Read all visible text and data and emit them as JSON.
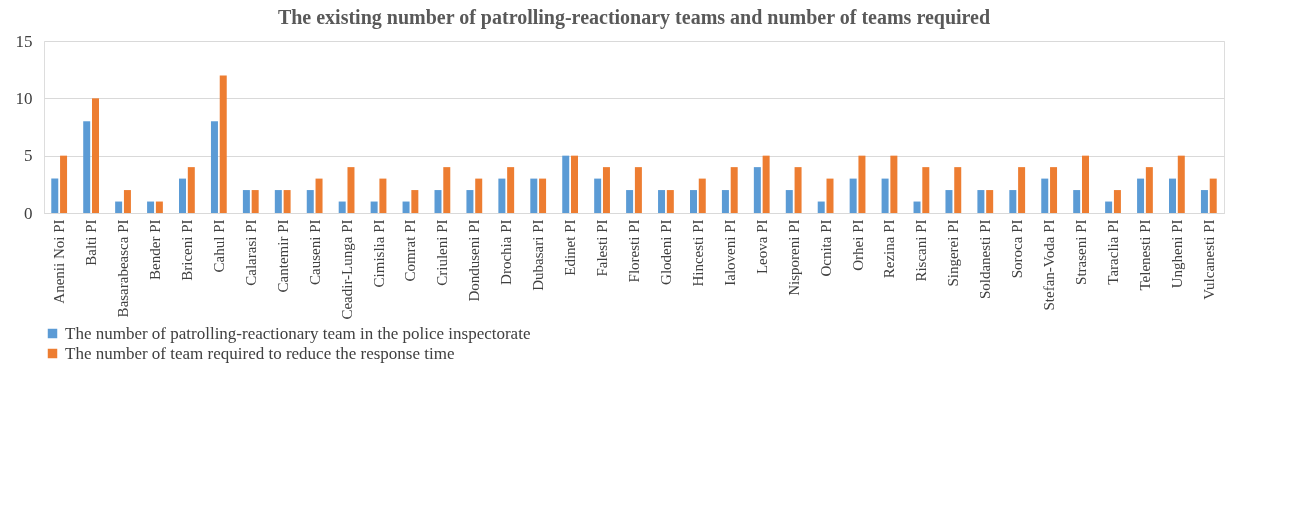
{
  "chart_data": {
    "type": "bar",
    "title": "The existing number of patrolling-reactionary teams and number of teams required",
    "categories": [
      "Anenii Noi PI",
      "Balti PI",
      "Basarabeasca PI",
      "Bender PI",
      "Briceni PI",
      "Cahul PI",
      "Calarasi PI",
      "Cantemir PI",
      "Causeni PI",
      "Ceadir-Lunga PI",
      "Cimislia PI",
      "Comrat PI",
      "Criuleni PI",
      "Donduseni PI",
      "Drochia PI",
      "Dubasari PI",
      "Edinet PI",
      "Falesti PI",
      "Floresti PI",
      "Glodeni PI",
      "Hincesti PI",
      "Ialoveni PI",
      "Leova PI",
      "Nisporeni PI",
      "Ocnita PI",
      "Orhei PI",
      "Rezina PI",
      "Riscani PI",
      "Singerei PI",
      "Soldanesti PI",
      "Soroca PI",
      "Stefan-Voda PI",
      "Straseni PI",
      "Taraclia PI",
      "Telenesti PI",
      "Ungheni PI",
      "Vulcanesti PI"
    ],
    "series": [
      {
        "name": "The number of patrolling-reactionary team in the police inspectorate",
        "color": "#5b9bd5",
        "values": [
          3,
          8,
          1,
          1,
          3,
          8,
          2,
          2,
          2,
          1,
          1,
          1,
          2,
          2,
          3,
          3,
          5,
          3,
          2,
          2,
          2,
          2,
          4,
          2,
          1,
          3,
          3,
          1,
          2,
          2,
          2,
          3,
          2,
          1,
          3,
          3,
          2
        ]
      },
      {
        "name": "The number of team required to reduce the response time",
        "color": "#ed7d31",
        "values": [
          5,
          10,
          2,
          1,
          4,
          12,
          2,
          2,
          3,
          4,
          3,
          2,
          4,
          3,
          4,
          3,
          5,
          4,
          4,
          2,
          3,
          4,
          5,
          4,
          3,
          5,
          5,
          4,
          4,
          2,
          4,
          4,
          5,
          2,
          4,
          5,
          3
        ]
      }
    ],
    "ylim": [
      0,
      15
    ],
    "yticks": [
      0,
      5,
      10,
      15
    ],
    "grid": "y",
    "legend": "bottom"
  }
}
